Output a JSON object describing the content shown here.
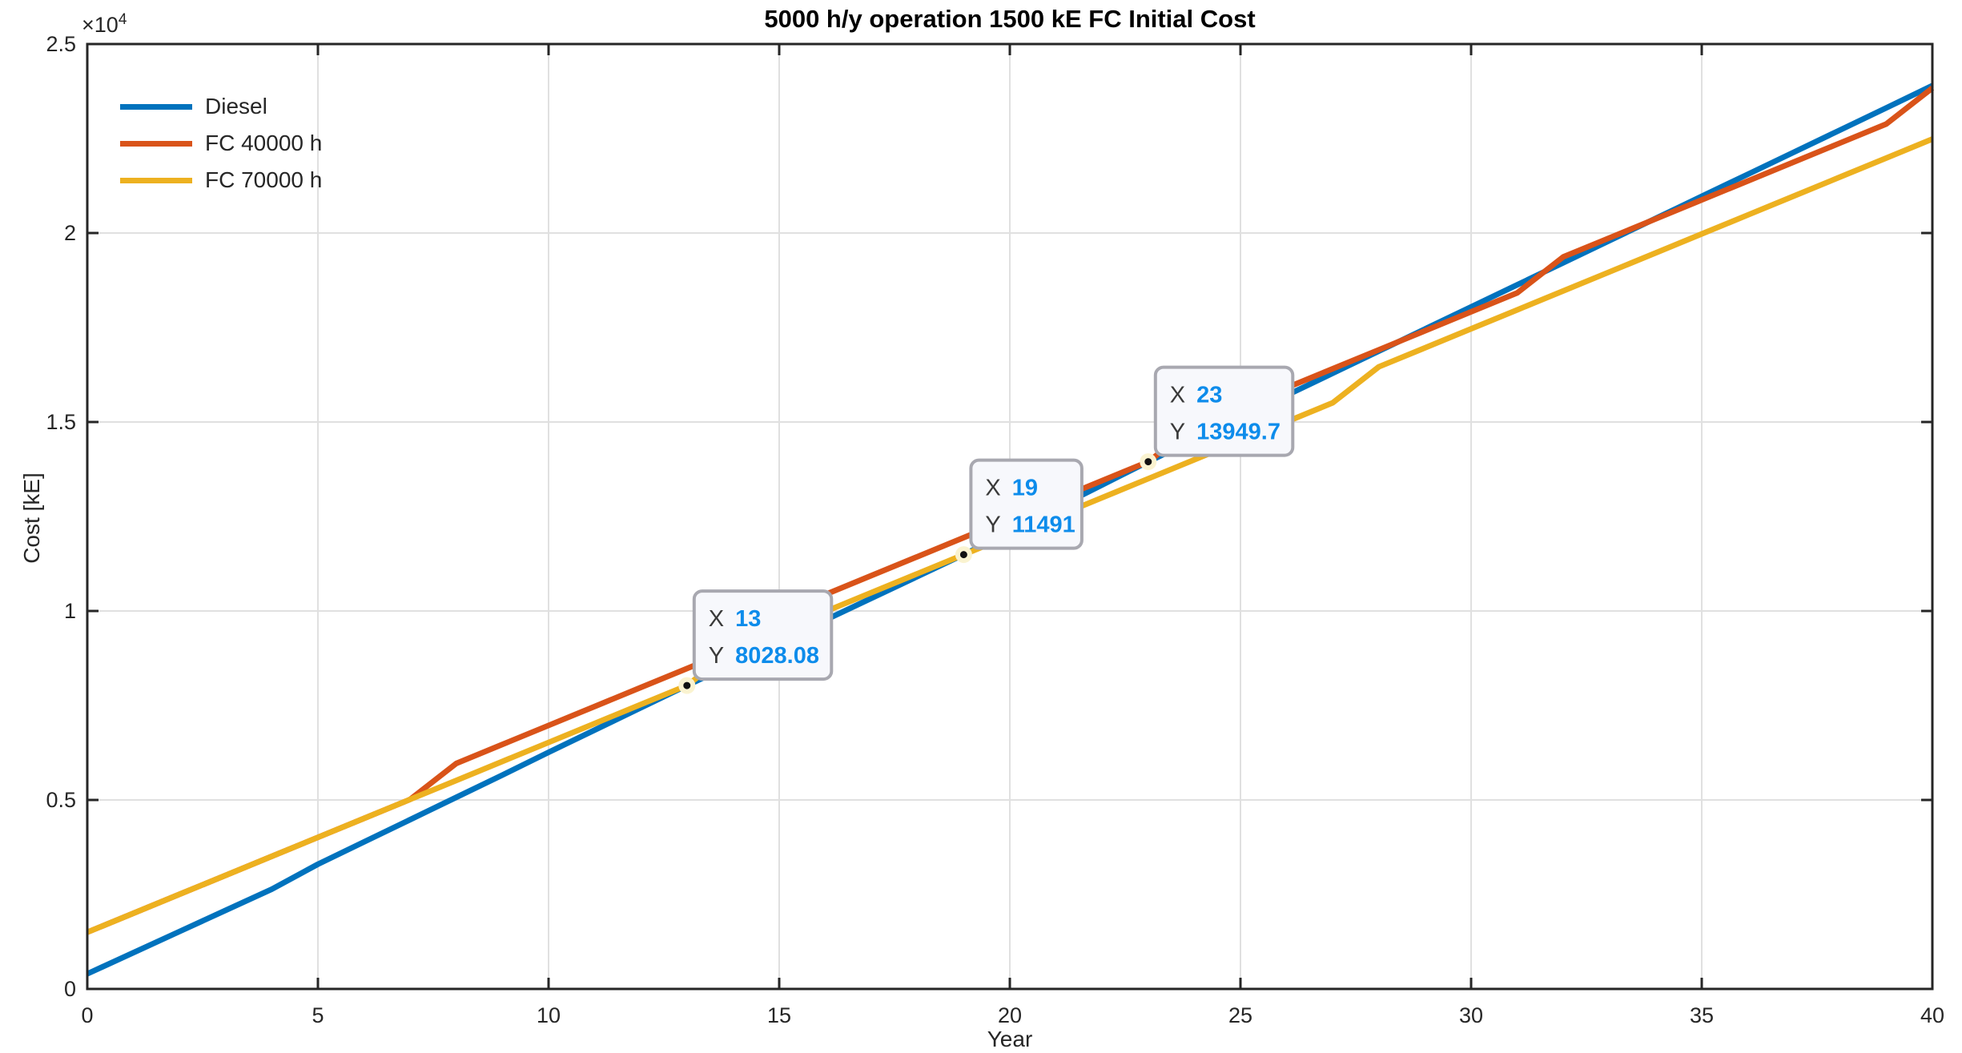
{
  "chart_data": {
    "type": "line",
    "title": "5000 h/y operation 1500 kE FC Initial Cost",
    "xlabel": "Year",
    "ylabel": "Cost [kE]",
    "y_exponent": {
      "base": "×10",
      "exp": "4"
    },
    "xlim": [
      0,
      40
    ],
    "ylim": [
      0,
      25000
    ],
    "grid": true,
    "legend_position": "top-left-inside",
    "x_ticks": [
      {
        "v": 0,
        "label": "0"
      },
      {
        "v": 5,
        "label": "5"
      },
      {
        "v": 10,
        "label": "10"
      },
      {
        "v": 15,
        "label": "15"
      },
      {
        "v": 20,
        "label": "20"
      },
      {
        "v": 25,
        "label": "25"
      },
      {
        "v": 30,
        "label": "30"
      },
      {
        "v": 35,
        "label": "35"
      },
      {
        "v": 40,
        "label": "40"
      }
    ],
    "y_ticks": [
      {
        "v": 0,
        "label": "0"
      },
      {
        "v": 5000,
        "label": "0.5"
      },
      {
        "v": 10000,
        "label": "1"
      },
      {
        "v": 15000,
        "label": "1.5"
      },
      {
        "v": 20000,
        "label": "2"
      },
      {
        "v": 25000,
        "label": "2.5"
      }
    ],
    "years": [
      0,
      1,
      2,
      3,
      4,
      5,
      6,
      7,
      8,
      9,
      10,
      11,
      12,
      13,
      14,
      15,
      16,
      17,
      18,
      19,
      20,
      21,
      22,
      23,
      24,
      25,
      26,
      27,
      28,
      29,
      30,
      31,
      32,
      33,
      34,
      35,
      36,
      37,
      38,
      39,
      40
    ],
    "series": [
      {
        "name": "Diesel",
        "color": "#0072BD",
        "values": [
          400,
          960,
          1520,
          2080,
          2640,
          3300,
          3890,
          4480,
          5070,
          5660,
          6260,
          6850,
          7440,
          8028.08,
          8605,
          9183,
          9760,
          10337,
          10914,
          11491,
          12106,
          12720,
          13335,
          13949.7,
          14535,
          15120,
          15705,
          16290,
          16875,
          17460,
          18045,
          18630,
          19215,
          19800,
          20385,
          20970,
          21555,
          22140,
          22725,
          23310,
          23900
        ]
      },
      {
        "name": "FC 40000 h",
        "color": "#D95319",
        "values": [
          1500,
          2002.2,
          2504.3,
          3006.5,
          3508.6,
          4010.8,
          4513,
          5015.1,
          5967.3,
          6469.4,
          6971.6,
          7473.8,
          7975.9,
          8478.1,
          8980.2,
          9482.4,
          10434.6,
          10936.7,
          11438.9,
          11941,
          12443.2,
          12945.4,
          13447.5,
          13949.7,
          14901.8,
          15404,
          15906.2,
          16408.3,
          16910.5,
          17412.6,
          17914.8,
          18417,
          19369.1,
          19871.3,
          20373.4,
          20875.6,
          21377.8,
          21879.9,
          22382.1,
          22884.2,
          23836.4
        ]
      },
      {
        "name": "FC 70000 h",
        "color": "#EDB120",
        "values": [
          1500,
          2002.2,
          2504.3,
          3006.5,
          3508.6,
          4010.8,
          4513,
          5015.1,
          5517.3,
          6019.4,
          6521.6,
          7023.8,
          7525.9,
          8028.1,
          8980.2,
          9482.4,
          9984.6,
          10486.7,
          10988.9,
          11491,
          11993.2,
          12495.4,
          12997.5,
          13499.7,
          14001.8,
          14504,
          15006.2,
          15508.3,
          16460.5,
          16962.6,
          17464.8,
          17967,
          18469.1,
          18971.3,
          19473.4,
          19975.6,
          20477.8,
          20979.9,
          21482.1,
          21984.2,
          22486.4
        ]
      }
    ],
    "datatips": [
      {
        "x": 13,
        "y": 8028.08,
        "x_label": "X",
        "y_label": "Y",
        "x_text": "13",
        "y_text": "8028.08"
      },
      {
        "x": 19,
        "y": 11491,
        "x_label": "X",
        "y_label": "Y",
        "x_text": "19",
        "y_text": "11491"
      },
      {
        "x": 23,
        "y": 13949.7,
        "x_label": "X",
        "y_label": "Y",
        "x_text": "23",
        "y_text": "13949.7"
      }
    ],
    "colors": {
      "axis": "#262626",
      "grid": "#e0e0e0",
      "title": "#000000",
      "datatip_bg": "#f7f8fc",
      "datatip_border": "#a8a8b0",
      "datatip_label": "#3a3a3a",
      "datatip_value": "#0d8ceb",
      "datatip_marker": "#111111",
      "datatip_marker_ring": "#faf3d0"
    }
  }
}
